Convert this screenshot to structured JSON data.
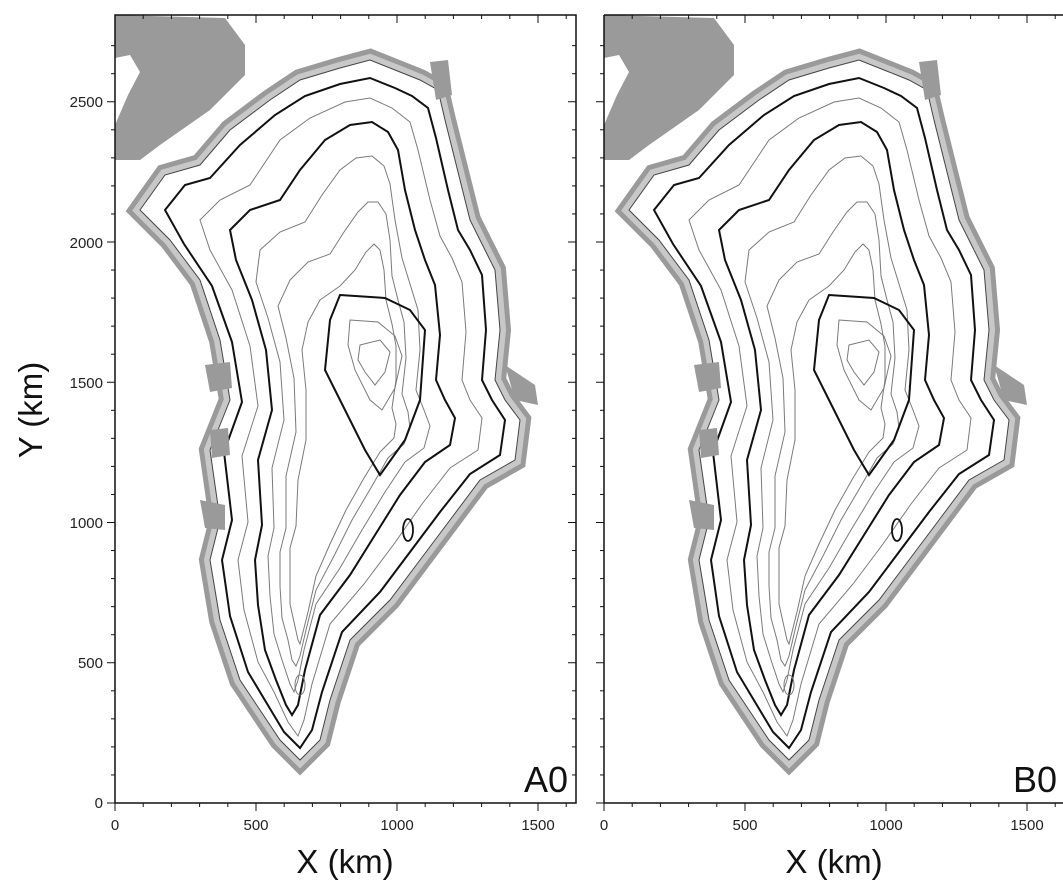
{
  "panels": [
    {
      "label": "A0",
      "xlabel": "X (km)",
      "ylabel": "Y (km)"
    },
    {
      "label": "B0",
      "xlabel": "X (km)",
      "ylabel": ""
    }
  ],
  "x_ticks": [
    "0",
    "500",
    "1000",
    "1500"
  ],
  "y_ticks": [
    "0",
    "500",
    "1000",
    "1500",
    "2000",
    "2500"
  ],
  "colors": {
    "land": "#9a9a9a",
    "ice_margin": "#c8c8c8",
    "contour_major": "#111111",
    "contour_minor": "#7a7a7a"
  }
}
